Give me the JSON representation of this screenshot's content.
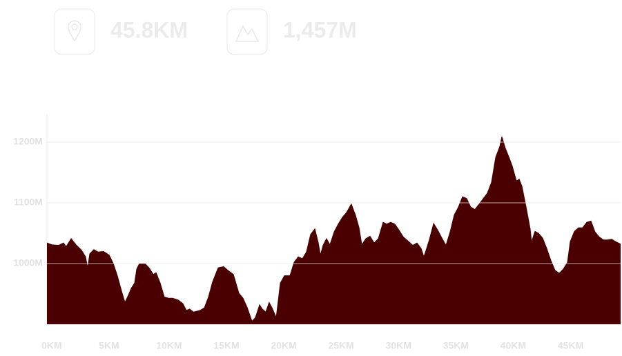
{
  "stats": [
    {
      "value": "45.8KM"
    },
    {
      "value": "1,457M"
    }
  ],
  "chart_data": {
    "type": "area",
    "color": "#4a0000",
    "grid": true,
    "x": [
      0.0,
      0.42,
      1.02,
      1.44,
      1.68,
      2.11,
      2.53,
      3.01,
      3.37,
      3.55,
      3.73,
      4.09,
      4.45,
      4.93,
      5.42,
      5.78,
      6.14,
      6.5,
      6.8,
      7.1,
      7.34,
      7.64,
      7.82,
      8.06,
      8.54,
      8.9,
      9.27,
      9.51,
      9.87,
      10.23,
      10.59,
      10.95,
      11.43,
      11.85,
      12.15,
      12.45,
      12.76,
      13.36,
      13.72,
      14.08,
      14.44,
      14.92,
      15.4,
      15.76,
      16.25,
      16.73,
      17.09,
      17.45,
      17.87,
      18.17,
      18.53,
      18.77,
      19.07,
      19.37,
      19.67,
      19.98,
      20.34,
      20.7,
      21.18,
      21.54,
      21.9,
      22.26,
      22.62,
      22.98,
      23.35,
      23.65,
      23.83,
      24.07,
      24.37,
      24.67,
      25.03,
      25.39,
      25.75,
      26.11,
      26.53,
      26.89,
      27.2,
      27.44,
      27.8,
      28.16,
      28.52,
      28.88,
      29.3,
      29.6,
      29.96,
      30.32,
      30.69,
      31.05,
      31.53,
      31.89,
      32.25,
      32.61,
      32.85,
      33.09,
      33.33,
      33.7,
      34.06,
      34.42,
      34.78,
      35.14,
      35.5,
      35.86,
      36.22,
      36.58,
      36.94,
      37.3,
      37.67,
      38.03,
      38.39,
      38.75,
      39.11,
      39.47,
      39.65,
      39.95,
      40.31,
      40.55,
      40.92,
      41.16,
      41.4,
      41.76,
      42.12,
      42.24,
      42.54,
      42.84,
      43.2,
      43.56,
      43.92,
      44.28,
      44.65,
      45.01,
      45.37,
      45.61,
      45.97,
      46.33,
      46.69,
      47.05,
      47.41,
      47.77,
      48.13,
      48.49,
      48.86,
      49.22,
      49.58,
      50.0
    ],
    "values": [
      1034,
      1031,
      1030,
      1034,
      1028,
      1041,
      1031,
      1022,
      1011,
      993,
      1016,
      1023,
      1019,
      1020,
      1014,
      1000,
      980,
      955,
      936,
      948,
      959,
      968,
      991,
      1000,
      1000,
      993,
      982,
      985,
      968,
      945,
      943,
      943,
      940,
      934,
      923,
      925,
      920,
      923,
      927,
      945,
      970,
      993,
      995,
      989,
      982,
      951,
      943,
      928,
      905,
      911,
      932,
      925,
      920,
      936,
      925,
      911,
      968,
      980,
      980,
      1002,
      1011,
      1008,
      1019,
      1048,
      1057,
      1034,
      1014,
      1030,
      1041,
      1031,
      1052,
      1065,
      1076,
      1084,
      1098,
      1080,
      1059,
      1031,
      1041,
      1045,
      1034,
      1041,
      1068,
      1065,
      1068,
      1065,
      1055,
      1044,
      1036,
      1030,
      1034,
      1025,
      1011,
      1025,
      1039,
      1066,
      1055,
      1042,
      1030,
      1052,
      1080,
      1093,
      1110,
      1107,
      1093,
      1089,
      1098,
      1107,
      1116,
      1134,
      1175,
      1193,
      1209,
      1190,
      1173,
      1161,
      1136,
      1139,
      1127,
      1093,
      1057,
      1036,
      1053,
      1050,
      1042,
      1025,
      1005,
      989,
      984,
      991,
      1002,
      1036,
      1053,
      1059,
      1059,
      1068,
      1070,
      1052,
      1044,
      1039,
      1039,
      1040,
      1036,
      1032
    ],
    "xlim": [
      0,
      50
    ],
    "ylim": [
      900,
      1250
    ],
    "xticks": [
      {
        "value": 0,
        "label": "0KM"
      },
      {
        "value": 5,
        "label": "5KM"
      },
      {
        "value": 10,
        "label": "10KM"
      },
      {
        "value": 15,
        "label": "15KM"
      },
      {
        "value": 20,
        "label": "20KM"
      },
      {
        "value": 25,
        "label": "25KM"
      },
      {
        "value": 30,
        "label": "30KM"
      },
      {
        "value": 35,
        "label": "35KM"
      },
      {
        "value": 40,
        "label": "40KM"
      },
      {
        "value": 45,
        "label": "45KM"
      }
    ],
    "yticks": [
      {
        "value": 1000,
        "label": "1000M"
      },
      {
        "value": 1100,
        "label": "1100M"
      },
      {
        "value": 1200,
        "label": "1200M"
      }
    ]
  }
}
